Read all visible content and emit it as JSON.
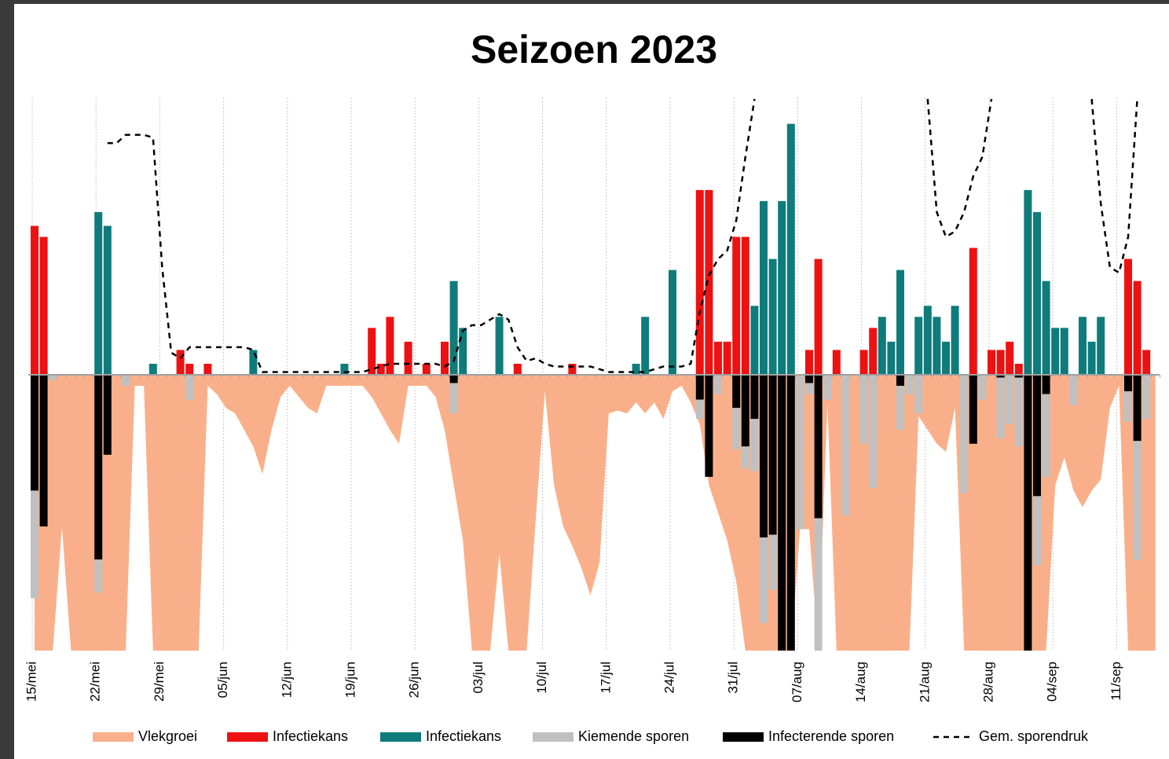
{
  "chart_data": {
    "type": "bar",
    "title": "Seizoen 2023",
    "categories": [
      "15/mei",
      null,
      null,
      null,
      null,
      null,
      null,
      "22/mei",
      null,
      null,
      null,
      null,
      null,
      null,
      "29/mei",
      null,
      null,
      null,
      null,
      null,
      null,
      "05/jun",
      null,
      null,
      null,
      null,
      null,
      null,
      "12/jun",
      null,
      null,
      null,
      null,
      null,
      null,
      "19/jun",
      null,
      null,
      null,
      null,
      null,
      null,
      "26/jun",
      null,
      null,
      null,
      null,
      null,
      null,
      "03/jul",
      null,
      null,
      null,
      null,
      null,
      null,
      "10/jul",
      null,
      null,
      null,
      null,
      null,
      null,
      "17/jul",
      null,
      null,
      null,
      null,
      null,
      null,
      "24/jul",
      null,
      null,
      null,
      null,
      null,
      null,
      "31/jul",
      null,
      null,
      null,
      null,
      null,
      null,
      "07/aug",
      null,
      null,
      null,
      null,
      null,
      null,
      "14/aug",
      null,
      null,
      null,
      null,
      null,
      null,
      "21/aug",
      null,
      null,
      null,
      null,
      null,
      null,
      "28/aug",
      null,
      null,
      null,
      null,
      null,
      null,
      "04/sep",
      null,
      null,
      null,
      null,
      null,
      null,
      "11/sep",
      null,
      null,
      null,
      null
    ],
    "ylim": [
      -100,
      100
    ],
    "grid": true,
    "series": [
      {
        "name": "Vlekgroei",
        "type": "area",
        "color": "#f9b08a",
        "values": [
          -100,
          -100,
          -100,
          -55,
          -100,
          -100,
          -100,
          -100,
          -100,
          -100,
          -100,
          -4,
          -4,
          -100,
          -100,
          -100,
          -100,
          -100,
          -100,
          -4,
          -7,
          -12,
          -14,
          -20,
          -26,
          -36,
          -20,
          -8,
          -4,
          -8,
          -12,
          -14,
          -4,
          -4,
          -4,
          -4,
          -4,
          -8,
          -14,
          -20,
          -25,
          -4,
          -4,
          -4,
          -8,
          -20,
          -40,
          -60,
          -100,
          -100,
          -100,
          -65,
          -100,
          -100,
          -100,
          -52,
          -6,
          -40,
          -55,
          -62,
          -70,
          -80,
          -68,
          -14,
          -13,
          -14,
          -10,
          -14,
          -10,
          -16,
          -6,
          -4,
          -10,
          -18,
          -40,
          -50,
          -60,
          -75,
          -100,
          -100,
          -100,
          -100,
          -100,
          -100,
          -56,
          -56,
          -100,
          -10,
          -100,
          -100,
          -100,
          -100,
          -100,
          -100,
          -100,
          -100,
          -100,
          -15,
          -20,
          -25,
          -28,
          -12,
          -100,
          -100,
          -100,
          -100,
          -100,
          -100,
          -100,
          -100,
          -100,
          -100,
          -40,
          -30,
          -42,
          -48,
          -42,
          -38,
          -12,
          -4,
          -100,
          -100,
          -100,
          -100
        ]
      },
      {
        "name": "Infectiekans",
        "type": "bar",
        "color": "#ee1111",
        "values": [
          54,
          50,
          0,
          0,
          0,
          0,
          0,
          0,
          0,
          0,
          0,
          0,
          0,
          0,
          0,
          0,
          9,
          4,
          0,
          4,
          0,
          0,
          0,
          0,
          0,
          0,
          0,
          0,
          0,
          0,
          0,
          0,
          0,
          0,
          0,
          0,
          0,
          17,
          4,
          21,
          0,
          12,
          0,
          4,
          0,
          12,
          0,
          0,
          0,
          0,
          0,
          0,
          0,
          4,
          0,
          0,
          0,
          0,
          0,
          4,
          0,
          0,
          0,
          0,
          0,
          0,
          0,
          0,
          0,
          0,
          0,
          0,
          0,
          67,
          67,
          12,
          12,
          50,
          50,
          0,
          0,
          0,
          0,
          0,
          0,
          9,
          42,
          0,
          9,
          0,
          0,
          9,
          17,
          0,
          0,
          0,
          0,
          0,
          0,
          0,
          0,
          0,
          0,
          46,
          0,
          9,
          9,
          12,
          4,
          0,
          0,
          0,
          0,
          0,
          0,
          0,
          0,
          0,
          0,
          0,
          42,
          34,
          9,
          0
        ]
      },
      {
        "name": "Infectiekans",
        "type": "bar",
        "color": "#0f7b7b",
        "values": [
          0,
          0,
          0,
          0,
          0,
          0,
          0,
          59,
          54,
          0,
          0,
          0,
          0,
          4,
          0,
          0,
          0,
          0,
          0,
          0,
          0,
          0,
          0,
          0,
          9,
          0,
          0,
          0,
          0,
          0,
          0,
          0,
          0,
          0,
          4,
          0,
          0,
          0,
          0,
          0,
          0,
          0,
          0,
          0,
          0,
          0,
          34,
          17,
          0,
          0,
          0,
          21,
          0,
          0,
          0,
          0,
          0,
          0,
          0,
          0,
          0,
          0,
          0,
          0,
          0,
          0,
          4,
          21,
          0,
          0,
          38,
          0,
          0,
          0,
          0,
          0,
          0,
          0,
          0,
          25,
          63,
          42,
          63,
          91,
          0,
          0,
          0,
          0,
          0,
          0,
          0,
          0,
          0,
          21,
          12,
          38,
          0,
          21,
          25,
          21,
          12,
          25,
          0,
          0,
          0,
          0,
          0,
          0,
          0,
          67,
          59,
          34,
          17,
          17,
          0,
          21,
          12,
          21,
          0,
          0,
          0,
          0,
          0,
          0
        ]
      },
      {
        "name": "Kiemende sporen",
        "type": "bar",
        "stacked": true,
        "color": "#c0c0c0",
        "values": [
          -39,
          0,
          -2,
          0,
          0,
          0,
          0,
          -12,
          0,
          0,
          -4,
          0,
          0,
          0,
          0,
          0,
          0,
          -9,
          0,
          0,
          0,
          0,
          0,
          0,
          0,
          0,
          0,
          0,
          0,
          0,
          0,
          0,
          0,
          0,
          0,
          0,
          0,
          0,
          0,
          0,
          0,
          0,
          0,
          0,
          0,
          0,
          -11,
          0,
          0,
          0,
          0,
          0,
          0,
          0,
          0,
          0,
          0,
          0,
          0,
          0,
          0,
          0,
          0,
          0,
          0,
          0,
          0,
          0,
          0,
          0,
          0,
          0,
          0,
          -7,
          0,
          -7,
          0,
          -15,
          -8,
          -19,
          -31,
          -20,
          0,
          0,
          -56,
          -4,
          -48,
          -9,
          0,
          -51,
          0,
          -25,
          -41,
          0,
          0,
          -16,
          -7,
          -14,
          0,
          0,
          0,
          0,
          -43,
          0,
          -9,
          0,
          -22,
          -18,
          -25,
          0,
          -25,
          -30,
          0,
          0,
          -11,
          0,
          0,
          0,
          0,
          0,
          -11,
          -43,
          -16,
          0
        ]
      },
      {
        "name": "Infecterende sporen",
        "type": "bar",
        "stacked": true,
        "color": "#000000",
        "values": [
          -42,
          -55,
          0,
          0,
          0,
          0,
          0,
          -67,
          -29,
          0,
          0,
          0,
          0,
          0,
          0,
          0,
          0,
          0,
          0,
          0,
          0,
          0,
          0,
          0,
          0,
          0,
          0,
          0,
          0,
          0,
          0,
          0,
          0,
          0,
          0,
          0,
          0,
          0,
          0,
          0,
          0,
          0,
          0,
          0,
          0,
          0,
          -3,
          0,
          0,
          0,
          0,
          0,
          0,
          0,
          0,
          0,
          0,
          0,
          0,
          0,
          0,
          0,
          0,
          0,
          0,
          0,
          0,
          0,
          0,
          0,
          0,
          0,
          0,
          -9,
          -37,
          0,
          0,
          -12,
          -26,
          -16,
          -59,
          -58,
          -100,
          -100,
          0,
          -3,
          -52,
          0,
          0,
          0,
          0,
          0,
          0,
          0,
          0,
          -4,
          0,
          0,
          0,
          0,
          0,
          0,
          0,
          -25,
          0,
          0,
          -1,
          0,
          -1,
          -100,
          -44,
          -7,
          0,
          0,
          0,
          0,
          0,
          0,
          0,
          0,
          -6,
          -24,
          0,
          0
        ]
      },
      {
        "name": "Gem. sporendruk",
        "type": "line",
        "dashed": true,
        "color": "#000000",
        "values": [
          null,
          null,
          null,
          null,
          null,
          null,
          null,
          null,
          84,
          84,
          87,
          87,
          87,
          86,
          39,
          8,
          6,
          10,
          10,
          10,
          10,
          10,
          10,
          10,
          9,
          1,
          1,
          1,
          1,
          1,
          1,
          1,
          1,
          1,
          1,
          1,
          1,
          2,
          3,
          4,
          4,
          4,
          4,
          4,
          4,
          3,
          5,
          16,
          18,
          18,
          20,
          22,
          20,
          10,
          5,
          6,
          4,
          3,
          3,
          3,
          3,
          3,
          2,
          1,
          1,
          1,
          1,
          1,
          2,
          3,
          3,
          3,
          4,
          23,
          36,
          42,
          45,
          56,
          79,
          100,
          null,
          null,
          null,
          null,
          null,
          null,
          null,
          null,
          null,
          null,
          null,
          null,
          null,
          null,
          null,
          null,
          null,
          null,
          100,
          59,
          50,
          52,
          59,
          72,
          79,
          100,
          null,
          null,
          null,
          null,
          null,
          null,
          null,
          null,
          null,
          null,
          100,
          62,
          39,
          37,
          50,
          100,
          null,
          null
        ]
      }
    ]
  }
}
